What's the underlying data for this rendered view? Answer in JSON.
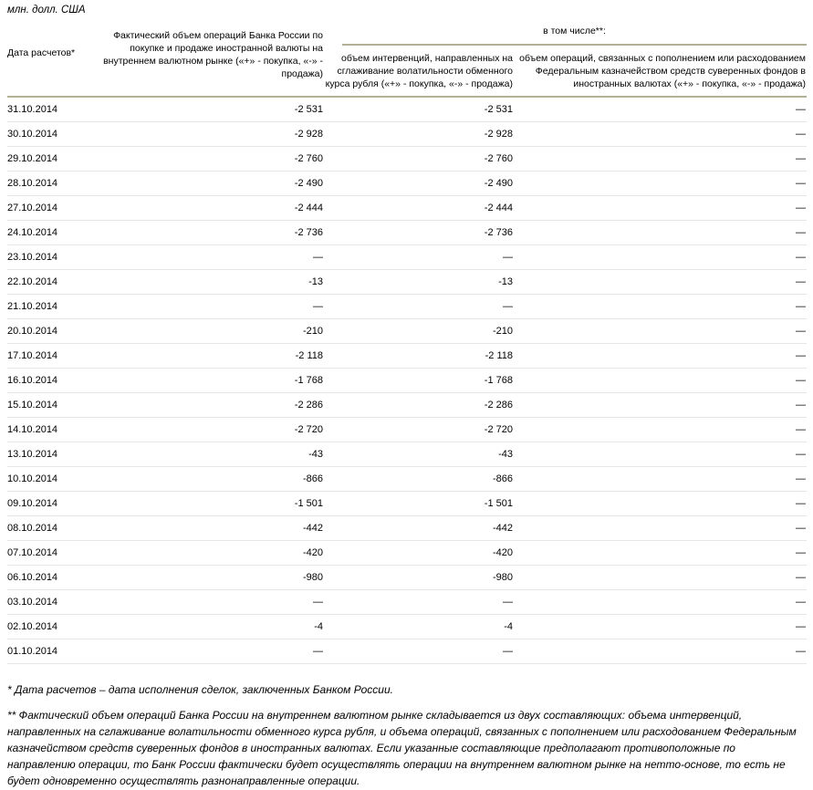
{
  "page": {
    "unit_label": "млн. долл. США"
  },
  "table": {
    "columns": {
      "date": "Дата расчетов*",
      "actual": "Фактический объем операций Банка России по покупке и продаже иностранной валюты на внутреннем валютном рынке («+» - покупка, «-» - продажа)",
      "group": "в том числе**:",
      "interventions": "объем интервенций, направленных на сглаживание волатильности обменного курса рубля («+» - покупка, «-» - продажа)",
      "treasury": "объем операций, связанных с пополнением или расходованием Федеральным казначейством средств суверенных фондов в иностранных валютах («+» - покупка, «-» - продажа)"
    },
    "rows": [
      {
        "date": "31.10.2014",
        "actual": "-2 531",
        "interventions": "-2 531",
        "treasury": "—"
      },
      {
        "date": "30.10.2014",
        "actual": "-2 928",
        "interventions": "-2 928",
        "treasury": "—"
      },
      {
        "date": "29.10.2014",
        "actual": "-2 760",
        "interventions": "-2 760",
        "treasury": "—"
      },
      {
        "date": "28.10.2014",
        "actual": "-2 490",
        "interventions": "-2 490",
        "treasury": "—"
      },
      {
        "date": "27.10.2014",
        "actual": "-2 444",
        "interventions": "-2 444",
        "treasury": "—"
      },
      {
        "date": "24.10.2014",
        "actual": "-2 736",
        "interventions": "-2 736",
        "treasury": "—"
      },
      {
        "date": "23.10.2014",
        "actual": "—",
        "interventions": "—",
        "treasury": "—"
      },
      {
        "date": "22.10.2014",
        "actual": "-13",
        "interventions": "-13",
        "treasury": "—"
      },
      {
        "date": "21.10.2014",
        "actual": "—",
        "interventions": "—",
        "treasury": "—"
      },
      {
        "date": "20.10.2014",
        "actual": "-210",
        "interventions": "-210",
        "treasury": "—"
      },
      {
        "date": "17.10.2014",
        "actual": "-2 118",
        "interventions": "-2 118",
        "treasury": "—"
      },
      {
        "date": "16.10.2014",
        "actual": "-1 768",
        "interventions": "-1 768",
        "treasury": "—"
      },
      {
        "date": "15.10.2014",
        "actual": "-2 286",
        "interventions": "-2 286",
        "treasury": "—"
      },
      {
        "date": "14.10.2014",
        "actual": "-2 720",
        "interventions": "-2 720",
        "treasury": "—"
      },
      {
        "date": "13.10.2014",
        "actual": "-43",
        "interventions": "-43",
        "treasury": "—"
      },
      {
        "date": "10.10.2014",
        "actual": "-866",
        "interventions": "-866",
        "treasury": "—"
      },
      {
        "date": "09.10.2014",
        "actual": "-1 501",
        "interventions": "-1 501",
        "treasury": "—"
      },
      {
        "date": "08.10.2014",
        "actual": "-442",
        "interventions": "-442",
        "treasury": "—"
      },
      {
        "date": "07.10.2014",
        "actual": "-420",
        "interventions": "-420",
        "treasury": "—"
      },
      {
        "date": "06.10.2014",
        "actual": "-980",
        "interventions": "-980",
        "treasury": "—"
      },
      {
        "date": "03.10.2014",
        "actual": "—",
        "interventions": "—",
        "treasury": "—"
      },
      {
        "date": "02.10.2014",
        "actual": "-4",
        "interventions": "-4",
        "treasury": "—"
      },
      {
        "date": "01.10.2014",
        "actual": "—",
        "interventions": "—",
        "treasury": "—"
      }
    ]
  },
  "footnotes": {
    "first": "* Дата расчетов – дата исполнения сделок, заключенных Банком России.",
    "second": "** Фактический объем операций Банка России на внутреннем валютном рынке складывается из двух составляющих: объема интервенций, направленных на сглаживание волатильности обменного курса рубля, и объема операций, связанных с пополнением или расходованием Федеральным казначейством средств суверенных фондов в иностранных валютах. Если указанные составляющие предполагают противоположные по направлению операции, то Банк России фактически будет осуществлять операции на внутреннем валютном рынке на нетто-основе, то есть не будет одновременно осуществлять разнонаправленные операции."
  },
  "colors": {
    "header_rule": "#b3b098",
    "row_rule": "#e6e6e6",
    "text": "#000000",
    "background": "#ffffff"
  }
}
